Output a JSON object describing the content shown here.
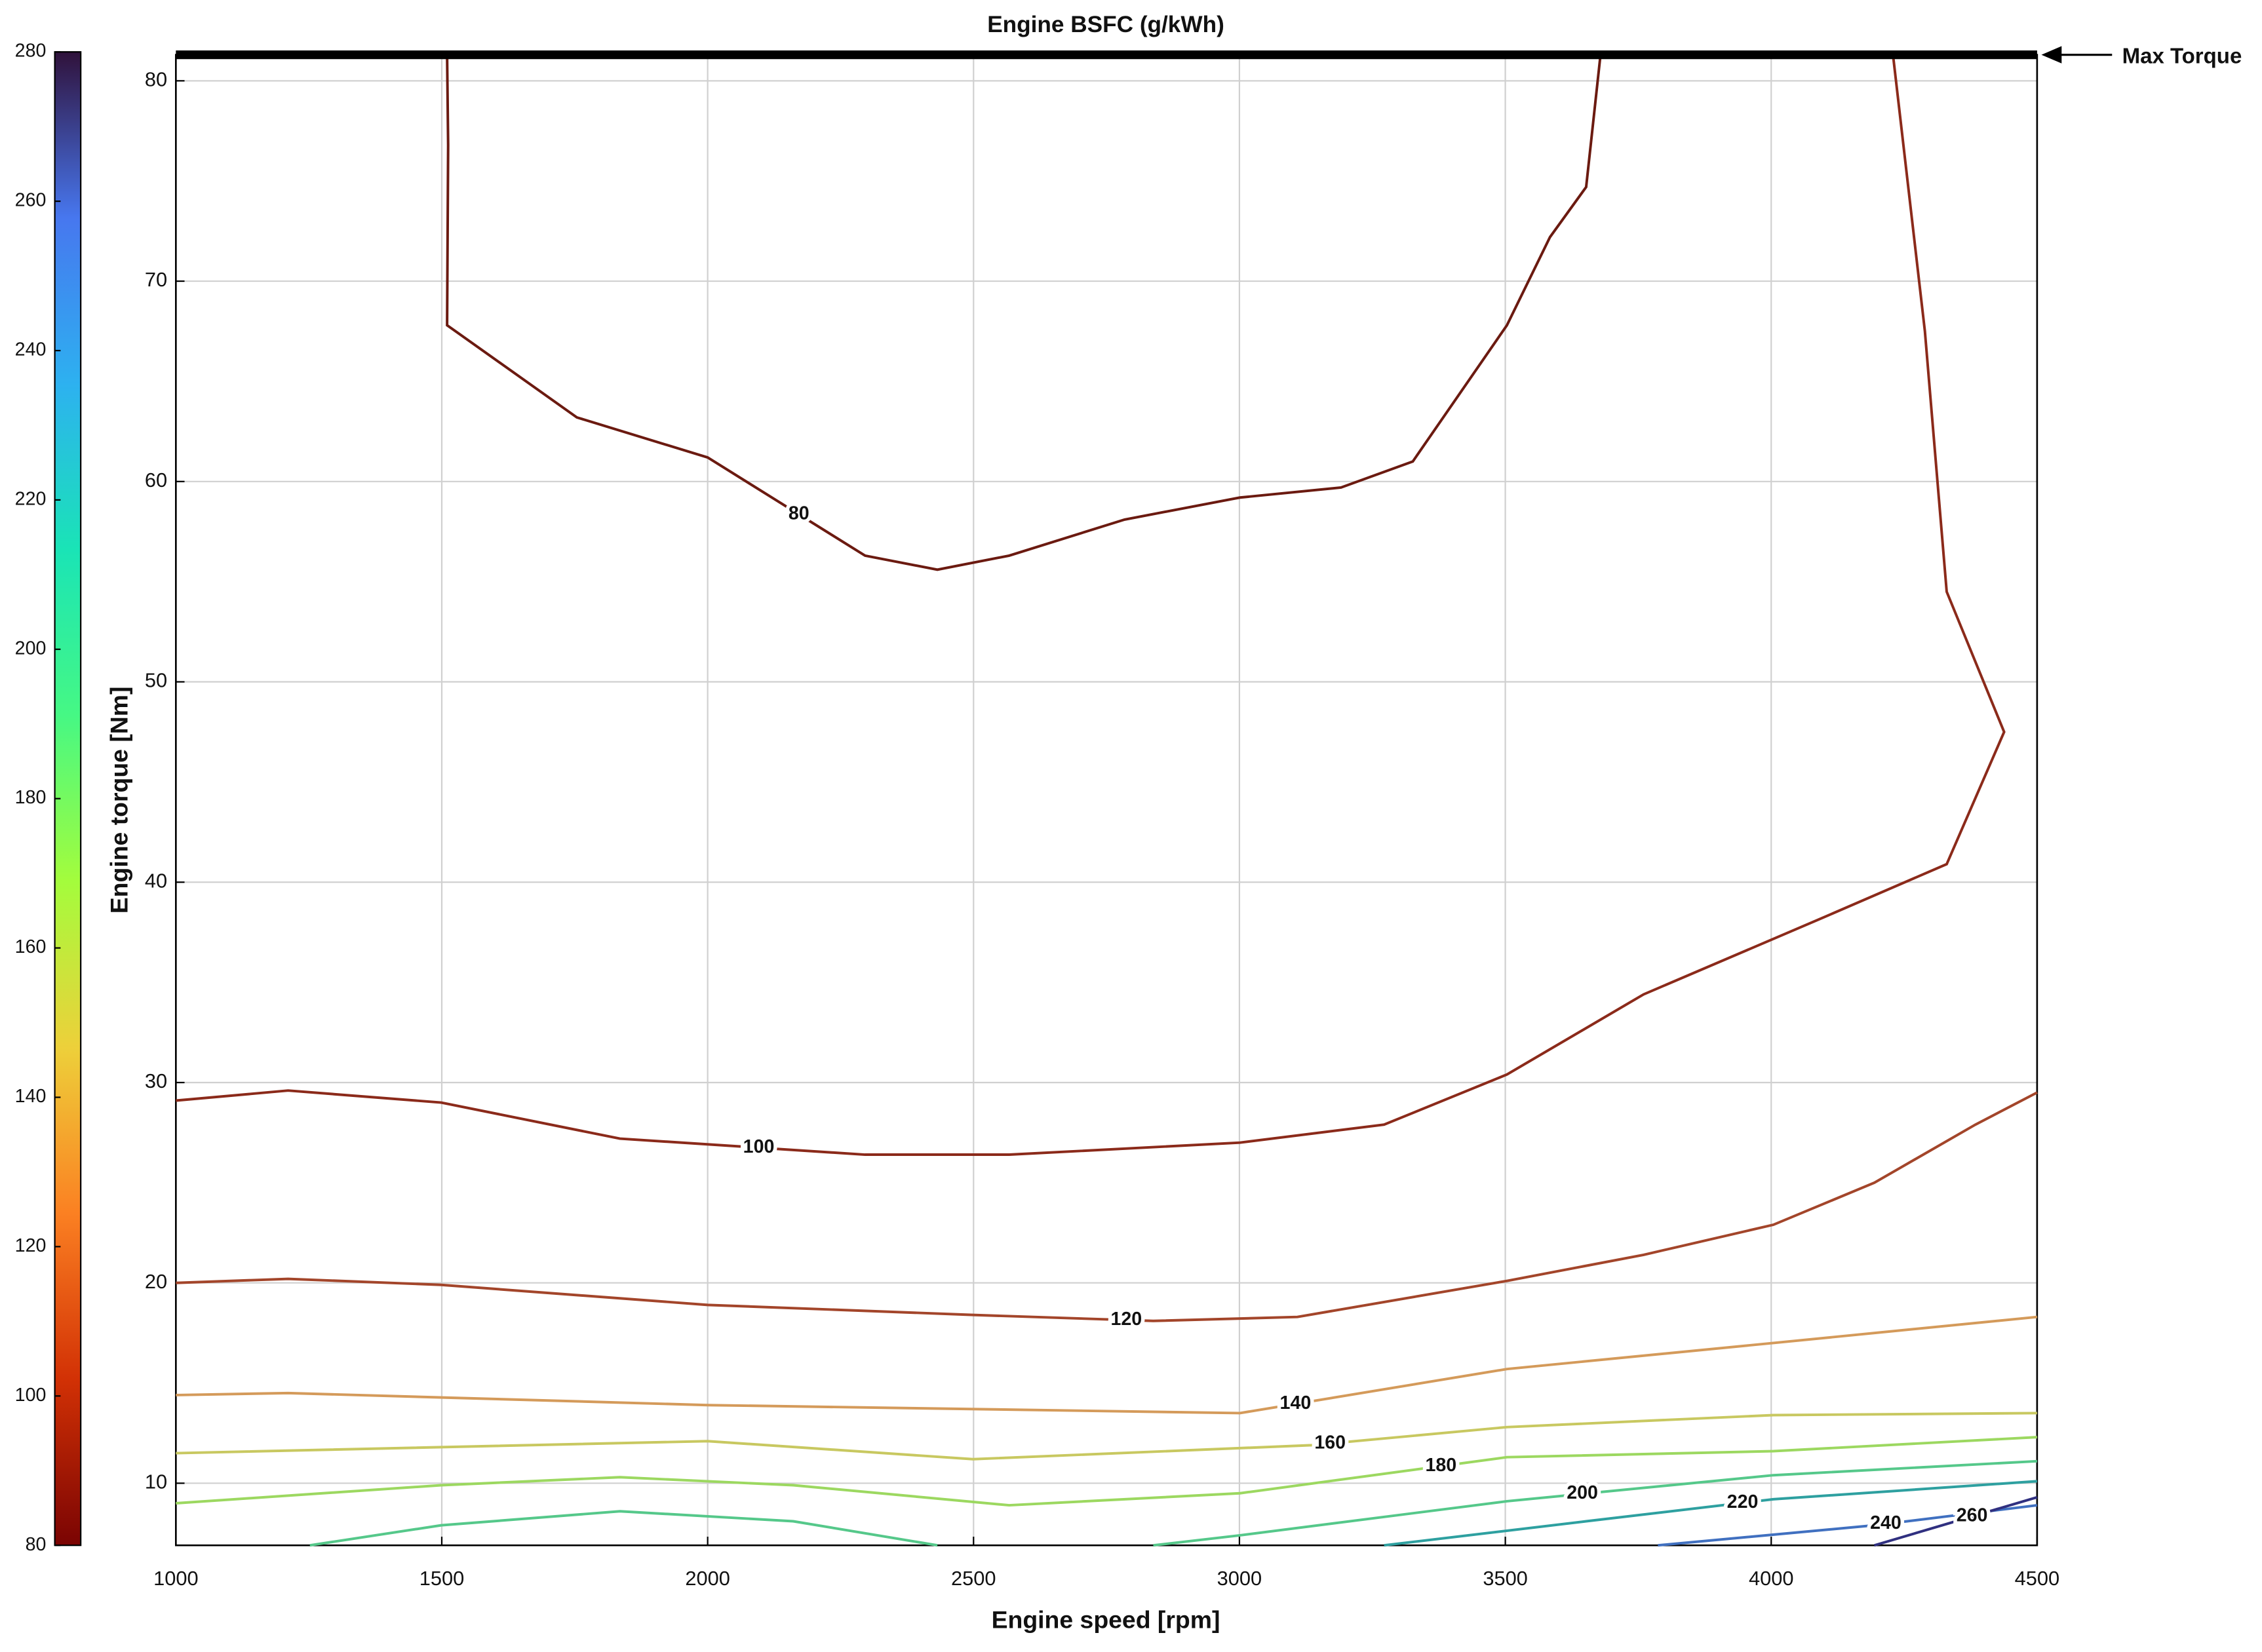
{
  "chart_data": {
    "type": "contour",
    "title": "Engine BSFC (g/kWh)",
    "x_label": "Engine speed [rpm]",
    "y_label": "Engine torque [Nm]",
    "xlim": [
      1000,
      4500
    ],
    "xticks": [
      1000,
      1500,
      2000,
      2500,
      3000,
      3500,
      4000,
      4500
    ],
    "ylim": [
      6.9,
      81.3
    ],
    "yticks": [
      10,
      20,
      30,
      40,
      50,
      60,
      70,
      80
    ],
    "grid": true,
    "colorbar": {
      "lim": [
        80,
        280
      ],
      "ticks": [
        80,
        100,
        120,
        140,
        160,
        180,
        200,
        220,
        240,
        260,
        280
      ],
      "colors": [
        "#7a0403",
        "#d23105",
        "#fb8022",
        "#edd03a",
        "#a4fc3c",
        "#46f884",
        "#1ae4b6",
        "#2db1f0",
        "#4777ef",
        "#30123b"
      ]
    },
    "reference_line": {
      "name": "Max Torque",
      "color": "#000000",
      "x": [
        1000,
        4500
      ],
      "values": [
        81.3,
        81.3
      ]
    },
    "series": [
      {
        "name": "80",
        "color": "#6b1a10",
        "x": [
          1510,
          1512,
          1510,
          1754,
          2000,
          2296,
          2432,
          2567,
          2784,
          3001,
          3191,
          3326,
          3503,
          3584,
          3652,
          3679
        ],
        "values": [
          81.3,
          76.8,
          67.8,
          63.2,
          61.2,
          56.3,
          55.6,
          56.3,
          58.1,
          59.2,
          59.7,
          61.0,
          67.8,
          72.2,
          74.7,
          81.3
        ]
      },
      {
        "name": "100",
        "color": "#8b2a1a",
        "x": [
          1000,
          1211,
          1499,
          1835,
          2296,
          2567,
          3001,
          3272,
          3503,
          3760,
          4086,
          4330,
          4438,
          4330,
          4289,
          4229
        ],
        "values": [
          29.1,
          29.6,
          29.0,
          27.2,
          26.4,
          26.4,
          27.0,
          27.9,
          30.4,
          34.4,
          38.1,
          40.9,
          47.5,
          54.5,
          67.5,
          81.3
        ]
      },
      {
        "name": "120",
        "color": "#a3452a",
        "x": [
          1000,
          1211,
          1499,
          2000,
          2499,
          2838,
          3109,
          3503,
          3760,
          4004,
          4194,
          4384,
          4500
        ],
        "values": [
          20.0,
          20.2,
          19.9,
          18.9,
          18.4,
          18.1,
          18.3,
          20.1,
          21.4,
          22.9,
          25.0,
          27.9,
          29.5
        ]
      },
      {
        "name": "140",
        "color": "#d49a5a",
        "x": [
          1000,
          1211,
          2000,
          3001,
          3503,
          4004,
          4500
        ],
        "values": [
          14.4,
          14.5,
          13.9,
          13.5,
          15.7,
          17.0,
          18.3
        ]
      },
      {
        "name": "160",
        "color": "#c8c860",
        "x": [
          1000,
          2000,
          2499,
          3136,
          3503,
          4004,
          4500
        ],
        "values": [
          11.5,
          12.1,
          11.2,
          11.9,
          12.8,
          13.4,
          13.5
        ]
      },
      {
        "name": "180",
        "color": "#9cd860",
        "x": [
          1000,
          1499,
          1835,
          2161,
          2567,
          3001,
          3503,
          4004,
          4500
        ],
        "values": [
          9.0,
          9.9,
          10.3,
          9.9,
          8.9,
          9.5,
          11.3,
          11.6,
          12.3
        ]
      },
      {
        "name": "200",
        "color": "#55c88a",
        "x": [
          1252,
          1499,
          1835,
          2161,
          2432,
          2432,
          2838,
          3001,
          3503,
          4004,
          4500
        ],
        "values": [
          6.9,
          7.9,
          8.6,
          8.1,
          6.9,
          null,
          6.9,
          7.4,
          9.1,
          10.4,
          11.1
        ]
      },
      {
        "name": "220",
        "color": "#2ea0a0",
        "x": [
          3272,
          3652,
          4004,
          4500
        ],
        "values": [
          6.9,
          8.1,
          9.2,
          10.1
        ]
      },
      {
        "name": "240",
        "color": "#4070c0",
        "x": [
          3787,
          4194,
          4500
        ],
        "values": [
          6.9,
          7.9,
          8.9
        ]
      },
      {
        "name": "260",
        "color": "#303080",
        "x": [
          4194,
          4500
        ],
        "values": [
          6.9,
          9.3
        ]
      }
    ]
  }
}
